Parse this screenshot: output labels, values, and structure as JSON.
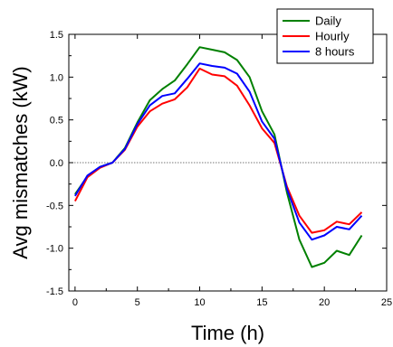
{
  "chart_data": {
    "type": "line",
    "title": "",
    "xlabel": "Time (h)",
    "ylabel": "Avg mismatches (kW)",
    "xlim": [
      -0.5,
      25
    ],
    "ylim": [
      -1.5,
      1.5
    ],
    "xticks": [
      0,
      5,
      10,
      15,
      20,
      25
    ],
    "yticks": [
      -1.5,
      -1.0,
      -0.5,
      0.0,
      0.5,
      1.0,
      1.5
    ],
    "ytick_labels": [
      "-1.5",
      "-1.0",
      "-0.5",
      "0.0",
      "0.5",
      "1.0",
      "1.5"
    ],
    "grid": false,
    "zero_line": true,
    "legend_position": "top-right",
    "x": [
      0,
      1,
      2,
      3,
      4,
      5,
      6,
      7,
      8,
      9,
      10,
      11,
      12,
      13,
      14,
      15,
      16,
      17,
      18,
      19,
      20,
      21,
      22,
      23
    ],
    "series": [
      {
        "name": "Daily",
        "color": "#008000",
        "values": [
          -0.37,
          -0.16,
          -0.05,
          0.0,
          0.17,
          0.47,
          0.73,
          0.86,
          0.96,
          1.15,
          1.35,
          1.32,
          1.29,
          1.2,
          1.0,
          0.6,
          0.33,
          -0.35,
          -0.9,
          -1.22,
          -1.17,
          -1.03,
          -1.08,
          -0.85
        ]
      },
      {
        "name": "Hourly",
        "color": "#ff0000",
        "values": [
          -0.45,
          -0.17,
          -0.06,
          0.0,
          0.15,
          0.42,
          0.6,
          0.69,
          0.74,
          0.88,
          1.1,
          1.03,
          1.01,
          0.9,
          0.67,
          0.4,
          0.23,
          -0.28,
          -0.62,
          -0.82,
          -0.79,
          -0.69,
          -0.72,
          -0.58
        ]
      },
      {
        "name": "8 hours",
        "color": "#0000ff",
        "values": [
          -0.39,
          -0.15,
          -0.05,
          0.0,
          0.16,
          0.45,
          0.67,
          0.78,
          0.81,
          0.98,
          1.16,
          1.13,
          1.11,
          1.04,
          0.83,
          0.48,
          0.28,
          -0.31,
          -0.7,
          -0.9,
          -0.85,
          -0.75,
          -0.78,
          -0.62
        ]
      }
    ]
  }
}
